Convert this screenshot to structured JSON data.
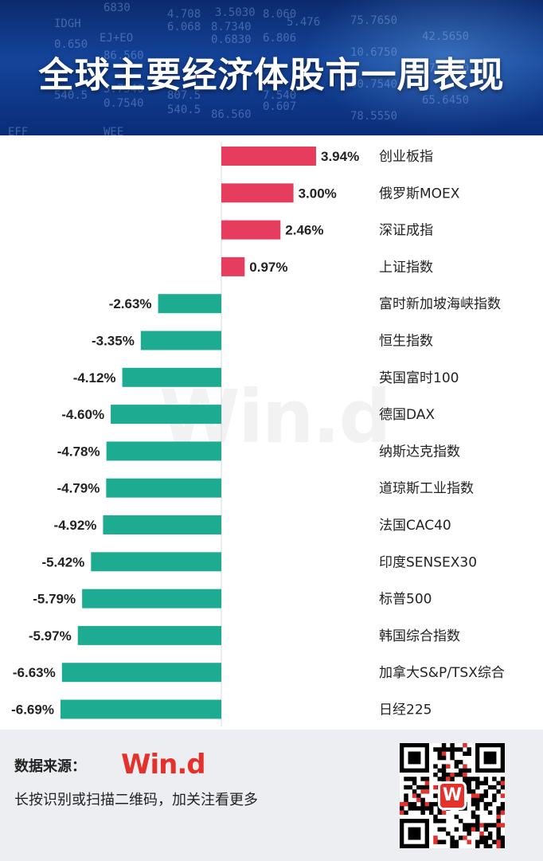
{
  "header": {
    "title": "全球主要经济体股市一周表现",
    "ticker_decor": [
      "6830",
      "4.708",
      "3.5030",
      "8.060",
      "IDGH",
      "EJ+EO",
      "6.068",
      "8.7340",
      "5.476",
      "0.650",
      "86.560",
      "0.6830",
      "6.806",
      "540.5",
      "5.7540",
      "807.5",
      "7.540",
      "0.7540",
      "540.5",
      "86.560",
      "0.607",
      "EFF",
      "WEE"
    ]
  },
  "chart_data": {
    "type": "bar",
    "orientation": "horizontal",
    "title": "全球主要经济体股市一周表现",
    "categories": [
      "创业板指",
      "俄罗斯MOEX",
      "深证成指",
      "上证指数",
      "富时新加坡海峡指数",
      "恒生指数",
      "英国富时100",
      "德国DAX",
      "纳斯达克指数",
      "道琼斯工业指数",
      "法国CAC40",
      "印度SENSEX30",
      "标普500",
      "韩国综合指数",
      "加拿大S&P/TSX综合",
      "日经225"
    ],
    "values": [
      3.94,
      3.0,
      2.46,
      0.97,
      -2.63,
      -3.35,
      -4.12,
      -4.6,
      -4.78,
      -4.79,
      -4.92,
      -5.42,
      -5.79,
      -5.97,
      -6.63,
      -6.69
    ],
    "labels": [
      "3.94%",
      "3.00%",
      "2.46%",
      "0.97%",
      "-2.63%",
      "-3.35%",
      "-4.12%",
      "-4.60%",
      "-4.78%",
      "-4.79%",
      "-4.92%",
      "-5.42%",
      "-5.79%",
      "-5.97%",
      "-6.63%",
      "-6.69%"
    ],
    "unit": "%",
    "positive_color": "#e63d5f",
    "negative_color": "#1dab91",
    "xlim": [
      -6.69,
      3.94
    ],
    "grid": false,
    "legend": "none"
  },
  "watermark": "Win.d",
  "footer": {
    "source_label": "数据来源：",
    "brand": "Win.d",
    "qr_logo": "W",
    "instruction": "长按识别或扫描二维码，加关注看更多"
  }
}
